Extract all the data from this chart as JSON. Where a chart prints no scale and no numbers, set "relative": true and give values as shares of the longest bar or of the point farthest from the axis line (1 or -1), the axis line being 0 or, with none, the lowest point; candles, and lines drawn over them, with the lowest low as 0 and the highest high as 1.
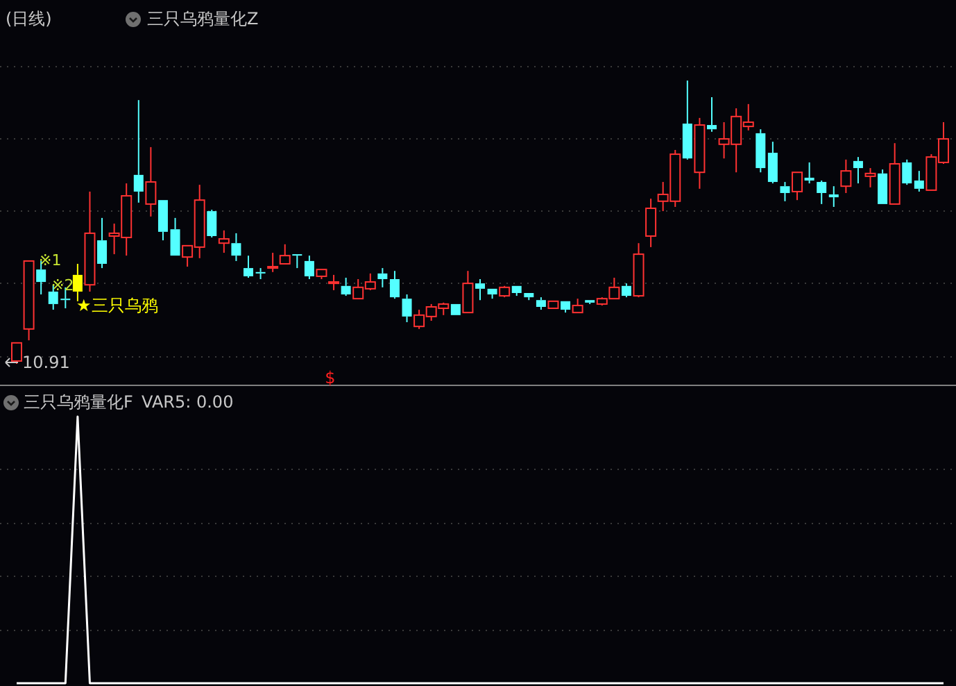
{
  "chart_data": [
    {
      "type": "candlestick",
      "title": "(日线)",
      "subtitle": "三只乌鸦量化Z",
      "relative": true,
      "grid": true,
      "categories": [
        null,
        null,
        null,
        null,
        null,
        null,
        null,
        null,
        null,
        null,
        null,
        null,
        null,
        null,
        null,
        null,
        null,
        null,
        null,
        null,
        null,
        null,
        null,
        null,
        null,
        null,
        null,
        null,
        null,
        null,
        null,
        null,
        null,
        null,
        null,
        null,
        null,
        null,
        null,
        null,
        null,
        null,
        null,
        null,
        null,
        null,
        null,
        null,
        null,
        null,
        null,
        null,
        null,
        null,
        null,
        null,
        null,
        null,
        null,
        null,
        null,
        null,
        null,
        null,
        null,
        null,
        null,
        null,
        null,
        null,
        null,
        null,
        null,
        null,
        null,
        null,
        null
      ],
      "ohlc": [
        [
          0.01,
          0.074,
          0,
          0.074
        ],
        [
          0.123,
          0.363,
          0.083,
          0.363
        ],
        [
          0.333,
          0.363,
          0.245,
          0.289
        ],
        [
          0.255,
          0.279,
          0.191,
          0.211
        ],
        [
          0.23,
          0.27,
          0.196,
          0.225
        ],
        [
          0.314,
          0.353,
          0.221,
          0.255
        ],
        [
          0.279,
          0.608,
          0.255,
          0.461
        ],
        [
          0.436,
          0.515,
          0.338,
          0.353
        ],
        [
          0.451,
          0.495,
          0.387,
          0.461
        ],
        [
          0.446,
          0.637,
          0.382,
          0.593
        ],
        [
          0.667,
          0.931,
          0.569,
          0.608
        ],
        [
          0.564,
          0.765,
          0.52,
          0.642
        ],
        [
          0.578,
          0.578,
          0.436,
          0.466
        ],
        [
          0.475,
          0.515,
          0.382,
          0.382
        ],
        [
          0.377,
          0.417,
          0.343,
          0.417
        ],
        [
          0.412,
          0.632,
          0.373,
          0.578
        ],
        [
          0.539,
          0.544,
          0.446,
          0.451
        ],
        [
          0.426,
          0.471,
          0.392,
          0.441
        ],
        [
          0.426,
          0.461,
          0.363,
          0.382
        ],
        [
          0.338,
          0.382,
          0.304,
          0.309
        ],
        [
          0.324,
          0.338,
          0.299,
          0.319
        ],
        [
          0.338,
          0.392,
          0.324,
          0.343
        ],
        [
          0.353,
          0.422,
          0.353,
          0.382
        ],
        [
          0.387,
          0.387,
          0.338,
          0.382
        ],
        [
          0.363,
          0.382,
          0.299,
          0.309
        ],
        [
          0.309,
          0.333,
          0.299,
          0.333
        ],
        [
          0.284,
          0.314,
          0.26,
          0.289
        ],
        [
          0.275,
          0.304,
          0.24,
          0.245
        ],
        [
          0.23,
          0.299,
          0.23,
          0.27
        ],
        [
          0.265,
          0.319,
          0.26,
          0.289
        ],
        [
          0.319,
          0.338,
          0.27,
          0.299
        ],
        [
          0.299,
          0.328,
          0.23,
          0.235
        ],
        [
          0.23,
          0.245,
          0.147,
          0.167
        ],
        [
          0.132,
          0.191,
          0.123,
          0.172
        ],
        [
          0.167,
          0.211,
          0.152,
          0.201
        ],
        [
          0.196,
          0.216,
          0.172,
          0.211
        ],
        [
          0.211,
          0.211,
          0.172,
          0.172
        ],
        [
          0.181,
          0.328,
          0.181,
          0.284
        ],
        [
          0.284,
          0.299,
          0.225,
          0.265
        ],
        [
          0.265,
          0.265,
          0.23,
          0.245
        ],
        [
          0.24,
          0.275,
          0.235,
          0.27
        ],
        [
          0.275,
          0.275,
          0.24,
          0.25
        ],
        [
          0.25,
          0.25,
          0.225,
          0.235
        ],
        [
          0.225,
          0.235,
          0.191,
          0.201
        ],
        [
          0.196,
          0.221,
          0.196,
          0.221
        ],
        [
          0.221,
          0.221,
          0.181,
          0.191
        ],
        [
          0.181,
          0.23,
          0.181,
          0.206
        ],
        [
          0.225,
          0.225,
          0.211,
          0.216
        ],
        [
          0.211,
          0.235,
          0.206,
          0.23
        ],
        [
          0.23,
          0.304,
          0.23,
          0.27
        ],
        [
          0.275,
          0.284,
          0.235,
          0.24
        ],
        [
          0.24,
          0.426,
          0.235,
          0.387
        ],
        [
          0.451,
          0.583,
          0.412,
          0.549
        ],
        [
          0.574,
          0.642,
          0.539,
          0.598
        ],
        [
          0.574,
          0.755,
          0.554,
          0.74
        ],
        [
          0.848,
          1,
          0.721,
          0.725
        ],
        [
          0.676,
          0.868,
          0.618,
          0.843
        ],
        [
          0.843,
          0.941,
          0.819,
          0.828
        ],
        [
          0.775,
          0.853,
          0.725,
          0.794
        ],
        [
          0.775,
          0.902,
          0.676,
          0.873
        ],
        [
          0.838,
          0.917,
          0.824,
          0.853
        ],
        [
          0.814,
          0.828,
          0.676,
          0.691
        ],
        [
          0.745,
          0.784,
          0.637,
          0.642
        ],
        [
          0.627,
          0.642,
          0.574,
          0.603
        ],
        [
          0.608,
          0.676,
          0.578,
          0.676
        ],
        [
          0.657,
          0.711,
          0.637,
          0.647
        ],
        [
          0.642,
          0.647,
          0.564,
          0.603
        ],
        [
          0.598,
          0.627,
          0.554,
          0.588
        ],
        [
          0.627,
          0.721,
          0.603,
          0.681
        ],
        [
          0.716,
          0.73,
          0.637,
          0.691
        ],
        [
          0.662,
          0.691,
          0.623,
          0.672
        ],
        [
          0.672,
          0.686,
          0.564,
          0.564
        ],
        [
          0.564,
          0.779,
          0.564,
          0.706
        ],
        [
          0.711,
          0.721,
          0.632,
          0.637
        ],
        [
          0.647,
          0.681,
          0.608,
          0.618
        ],
        [
          0.613,
          0.74,
          0.613,
          0.73
        ],
        [
          0.711,
          0.853,
          0.706,
          0.794
        ]
      ],
      "colors": [
        "#ff3232",
        "#ff3232",
        "#54ffff",
        "#54ffff",
        "#54ffff",
        "#ffff00",
        "#ff3232",
        "#54ffff",
        "#ff3232",
        "#ff3232",
        "#54ffff",
        "#ff3232",
        "#54ffff",
        "#54ffff",
        "#ff3232",
        "#ff3232",
        "#54ffff",
        "#ff3232",
        "#54ffff",
        "#54ffff",
        "#54ffff",
        "#ff3232",
        "#ff3232",
        "#54ffff",
        "#54ffff",
        "#ff3232",
        "#ff3232",
        "#54ffff",
        "#ff3232",
        "#ff3232",
        "#54ffff",
        "#54ffff",
        "#54ffff",
        "#ff3232",
        "#ff3232",
        "#ff3232",
        "#54ffff",
        "#ff3232",
        "#54ffff",
        "#54ffff",
        "#ff3232",
        "#54ffff",
        "#54ffff",
        "#54ffff",
        "#ff3232",
        "#54ffff",
        "#ff3232",
        "#54ffff",
        "#ff3232",
        "#ff3232",
        "#54ffff",
        "#ff3232",
        "#ff3232",
        "#ff3232",
        "#ff3232",
        "#54ffff",
        "#ff3232",
        "#54ffff",
        "#ff3232",
        "#ff3232",
        "#ff3232",
        "#54ffff",
        "#54ffff",
        "#54ffff",
        "#ff3232",
        "#54ffff",
        "#54ffff",
        "#54ffff",
        "#ff3232",
        "#54ffff",
        "#ff3232",
        "#54ffff",
        "#ff3232",
        "#54ffff",
        "#54ffff",
        "#ff3232",
        "#ff3232"
      ],
      "annotations": [
        "10.91",
        "※1",
        "※2",
        "★三只乌鸦",
        "$"
      ]
    },
    {
      "type": "line",
      "title": "三只乌鸦量化F",
      "subtitle": "VAR5: 0.00",
      "relative": true,
      "grid": true,
      "categories": [
        null,
        null,
        null,
        null,
        null,
        null,
        null,
        null,
        null,
        null,
        null,
        null,
        null,
        null,
        null,
        null,
        null,
        null,
        null,
        null,
        null,
        null,
        null,
        null,
        null,
        null,
        null,
        null,
        null,
        null,
        null,
        null,
        null,
        null,
        null,
        null,
        null,
        null,
        null,
        null,
        null,
        null,
        null,
        null,
        null,
        null,
        null,
        null,
        null,
        null,
        null,
        null,
        null,
        null,
        null,
        null,
        null,
        null,
        null,
        null,
        null,
        null,
        null,
        null,
        null,
        null,
        null,
        null,
        null,
        null,
        null,
        null,
        null,
        null,
        null,
        null,
        null
      ],
      "series": [
        {
          "color": "#ffffff",
          "values": [
            0,
            0,
            0,
            0,
            0,
            1,
            0,
            0,
            0,
            0,
            0,
            0,
            0,
            0,
            0,
            0,
            0,
            0,
            0,
            0,
            0,
            0,
            0,
            0,
            0,
            0,
            0,
            0,
            0,
            0,
            0,
            0,
            0,
            0,
            0,
            0,
            0,
            0,
            0,
            0,
            0,
            0,
            0,
            0,
            0,
            0,
            0,
            0,
            0,
            0,
            0,
            0,
            0,
            0,
            0,
            0,
            0,
            0,
            0,
            0,
            0,
            0,
            0,
            0,
            0,
            0,
            0,
            0,
            0,
            0,
            0,
            0,
            0,
            0,
            0,
            0,
            0
          ]
        }
      ]
    }
  ]
}
